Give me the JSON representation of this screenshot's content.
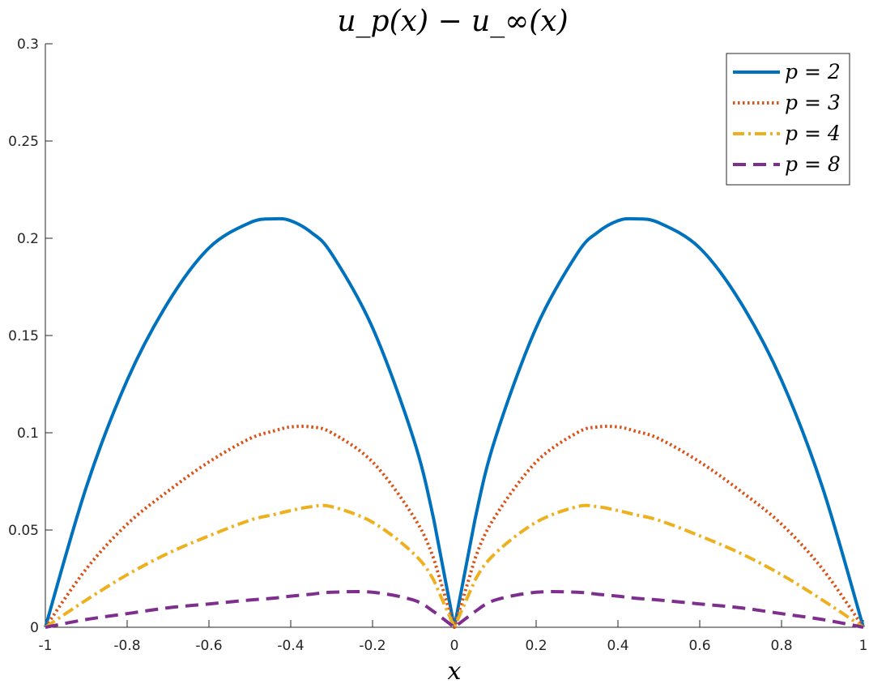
{
  "chart_data": {
    "type": "line",
    "title": "u_p(x) − u_∞(x)",
    "xlabel": "x",
    "ylabel": "",
    "xlim": [
      -1,
      1
    ],
    "ylim": [
      0,
      0.3
    ],
    "xticks": [
      -1,
      -0.8,
      -0.6,
      -0.4,
      -0.2,
      0,
      0.2,
      0.4,
      0.6,
      0.8,
      1
    ],
    "xtick_labels": [
      "-1",
      "-0.8",
      "-0.6",
      "-0.4",
      "-0.2",
      "0",
      "0.2",
      "0.4",
      "0.6",
      "0.8",
      "1"
    ],
    "yticks": [
      0,
      0.05,
      0.1,
      0.15,
      0.2,
      0.25,
      0.3
    ],
    "ytick_labels": [
      "0",
      "0.05",
      "0.1",
      "0.15",
      "0.2",
      "0.25",
      "0.3"
    ],
    "grid": false,
    "legend_position": "top-right",
    "x": [
      -1,
      -0.9,
      -0.8,
      -0.7,
      -0.6,
      -0.5,
      -0.44,
      -0.4,
      -0.35,
      -0.3,
      -0.2,
      -0.1,
      -0.05,
      0,
      0.05,
      0.1,
      0.2,
      0.3,
      0.35,
      0.4,
      0.44,
      0.5,
      0.6,
      0.7,
      0.8,
      0.9,
      1
    ],
    "series": [
      {
        "name": "p = 2",
        "color": "#0072BD",
        "dash": "solid",
        "values": [
          0,
          0.072,
          0.127,
          0.167,
          0.195,
          0.208,
          0.21,
          0.209,
          0.203,
          0.192,
          0.154,
          0.097,
          0.055,
          0,
          0.055,
          0.097,
          0.154,
          0.192,
          0.203,
          0.209,
          0.21,
          0.208,
          0.195,
          0.167,
          0.127,
          0.072,
          0
        ]
      },
      {
        "name": "p = 3",
        "color": "#D95319",
        "dash": "dotted",
        "values": [
          0,
          0.03,
          0.053,
          0.07,
          0.085,
          0.097,
          0.101,
          0.103,
          0.103,
          0.1,
          0.085,
          0.057,
          0.035,
          0,
          0.035,
          0.057,
          0.085,
          0.1,
          0.103,
          0.103,
          0.101,
          0.097,
          0.085,
          0.07,
          0.053,
          0.03,
          0
        ]
      },
      {
        "name": "p = 4",
        "color": "#EDB120",
        "dash": "dashdot",
        "values": [
          0,
          0.014,
          0.027,
          0.038,
          0.047,
          0.055,
          0.058,
          0.06,
          0.062,
          0.062,
          0.054,
          0.038,
          0.024,
          0,
          0.024,
          0.038,
          0.054,
          0.062,
          0.062,
          0.06,
          0.058,
          0.055,
          0.047,
          0.038,
          0.027,
          0.014,
          0
        ]
      },
      {
        "name": "p = 8",
        "color": "#7E2F8E",
        "dash": "dashed",
        "values": [
          0,
          0.004,
          0.007,
          0.01,
          0.012,
          0.014,
          0.015,
          0.016,
          0.017,
          0.018,
          0.018,
          0.014,
          0.008,
          0,
          0.008,
          0.014,
          0.018,
          0.018,
          0.017,
          0.016,
          0.015,
          0.014,
          0.012,
          0.01,
          0.007,
          0.004,
          0
        ]
      }
    ]
  }
}
